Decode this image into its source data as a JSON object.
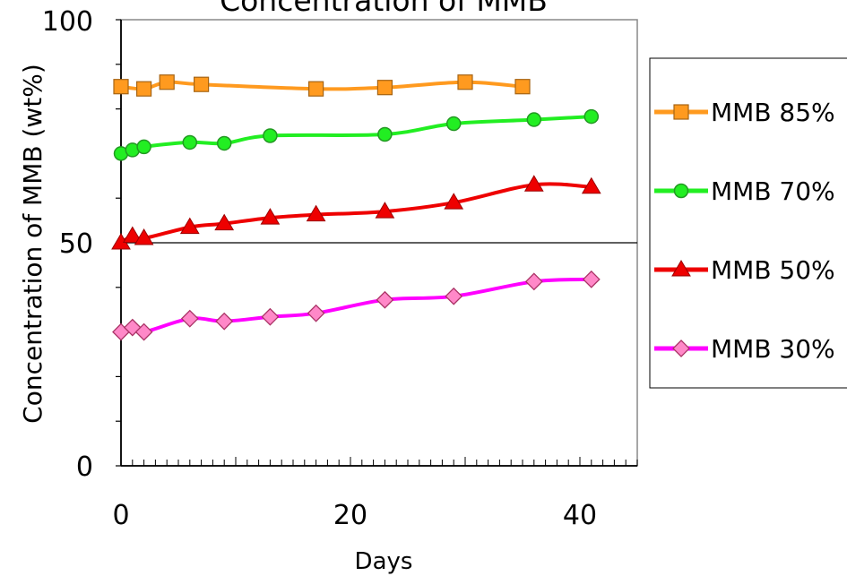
{
  "chart_data": {
    "type": "line",
    "title": "Concentration of MMB",
    "xlabel": "Days",
    "ylabel": "Concentration of MMB (wt%)",
    "xlim": [
      0,
      45
    ],
    "ylim": [
      0,
      100
    ],
    "x_ticks": [
      "0",
      "20",
      "40"
    ],
    "y_ticks": [
      "0",
      "50",
      "100"
    ],
    "legend_position": "right",
    "series": [
      {
        "name": "MMB 85%",
        "color": "#ff9a1f",
        "marker": "square",
        "x": [
          0,
          2,
          4,
          7,
          17,
          23,
          30,
          35
        ],
        "y": [
          85,
          84.5,
          86,
          85.5,
          84.5,
          84.8,
          86,
          85
        ]
      },
      {
        "name": "MMB 70%",
        "color": "#22ee22",
        "marker": "circle",
        "x": [
          0,
          1,
          2,
          6,
          9,
          13,
          23,
          29,
          36,
          41
        ],
        "y": [
          70,
          70.8,
          71.5,
          72.5,
          72.3,
          74,
          74.3,
          76.7,
          77.6,
          78.3
        ]
      },
      {
        "name": "MMB 50%",
        "color": "#ee0000",
        "marker": "triangle",
        "x": [
          0,
          1,
          2,
          6,
          9,
          13,
          17,
          23,
          29,
          36,
          41
        ],
        "y": [
          50,
          51.5,
          51,
          53.5,
          54.3,
          55.6,
          56.3,
          57,
          59,
          63,
          62.5
        ]
      },
      {
        "name": "MMB 30%",
        "color": "#ff00ff",
        "marker": "diamond",
        "x": [
          0,
          1,
          2,
          6,
          9,
          13,
          17,
          23,
          29,
          36,
          41
        ],
        "y": [
          30,
          31,
          30,
          33,
          32.4,
          33.4,
          34.2,
          37.2,
          38,
          41.3,
          41.8
        ]
      }
    ]
  }
}
